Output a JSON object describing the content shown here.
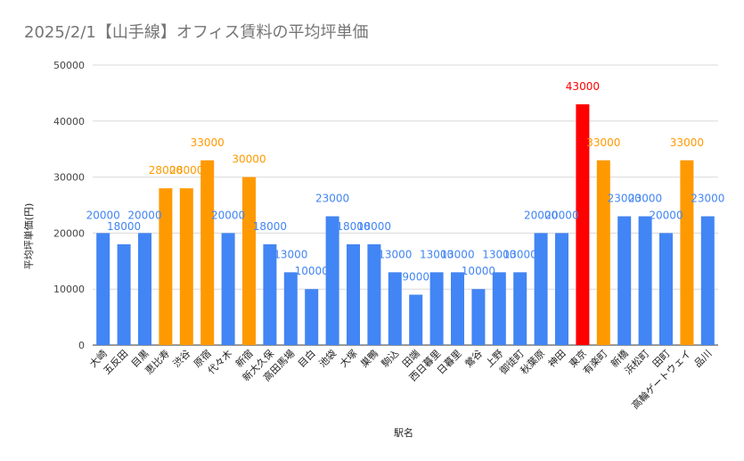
{
  "chart_data": {
    "type": "bar",
    "title": "2025/2/1【山手線】オフィス賃料の平均坪単価",
    "xlabel": "駅名",
    "ylabel": "平均坪単価(円)",
    "ylim": [
      0,
      50000
    ],
    "yticks": [
      0,
      10000,
      20000,
      30000,
      40000,
      50000
    ],
    "grid": true,
    "legend": "none",
    "categories": [
      "大崎",
      "五反田",
      "目黒",
      "恵比寿",
      "渋谷",
      "原宿",
      "代々木",
      "新宿",
      "新大久保",
      "高田馬場",
      "目白",
      "池袋",
      "大塚",
      "巣鴨",
      "駒込",
      "田端",
      "西日暮里",
      "日暮里",
      "鶯谷",
      "上野",
      "御徒町",
      "秋葉原",
      "神田",
      "東京",
      "有楽町",
      "新橋",
      "浜松町",
      "田町",
      "高輪ゲートウェイ",
      "品川"
    ],
    "values": [
      20000,
      18000,
      20000,
      28000,
      28000,
      33000,
      20000,
      30000,
      18000,
      13000,
      10000,
      23000,
      18000,
      18000,
      13000,
      9000,
      13000,
      13000,
      10000,
      13000,
      13000,
      20000,
      20000,
      43000,
      33000,
      23000,
      23000,
      20000,
      33000,
      23000
    ],
    "colors": [
      "#4285f4",
      "#4285f4",
      "#4285f4",
      "#ff9900",
      "#ff9900",
      "#ff9900",
      "#4285f4",
      "#ff9900",
      "#4285f4",
      "#4285f4",
      "#4285f4",
      "#4285f4",
      "#4285f4",
      "#4285f4",
      "#4285f4",
      "#4285f4",
      "#4285f4",
      "#4285f4",
      "#4285f4",
      "#4285f4",
      "#4285f4",
      "#4285f4",
      "#4285f4",
      "#ff0000",
      "#ff9900",
      "#4285f4",
      "#4285f4",
      "#4285f4",
      "#ff9900",
      "#4285f4"
    ],
    "data_labels": [
      "20000",
      "18000",
      "20000",
      "28000",
      "28000",
      "33000",
      "20000",
      "30000",
      "18000",
      "13000",
      "10000",
      "23000",
      "18000",
      "18000",
      "13000",
      "9000",
      "13000",
      "13000",
      "10000",
      "13000",
      "13000",
      "20000",
      "20000",
      "43000",
      "33000",
      "23000",
      "23000",
      "20000",
      "33000",
      "23000"
    ]
  }
}
